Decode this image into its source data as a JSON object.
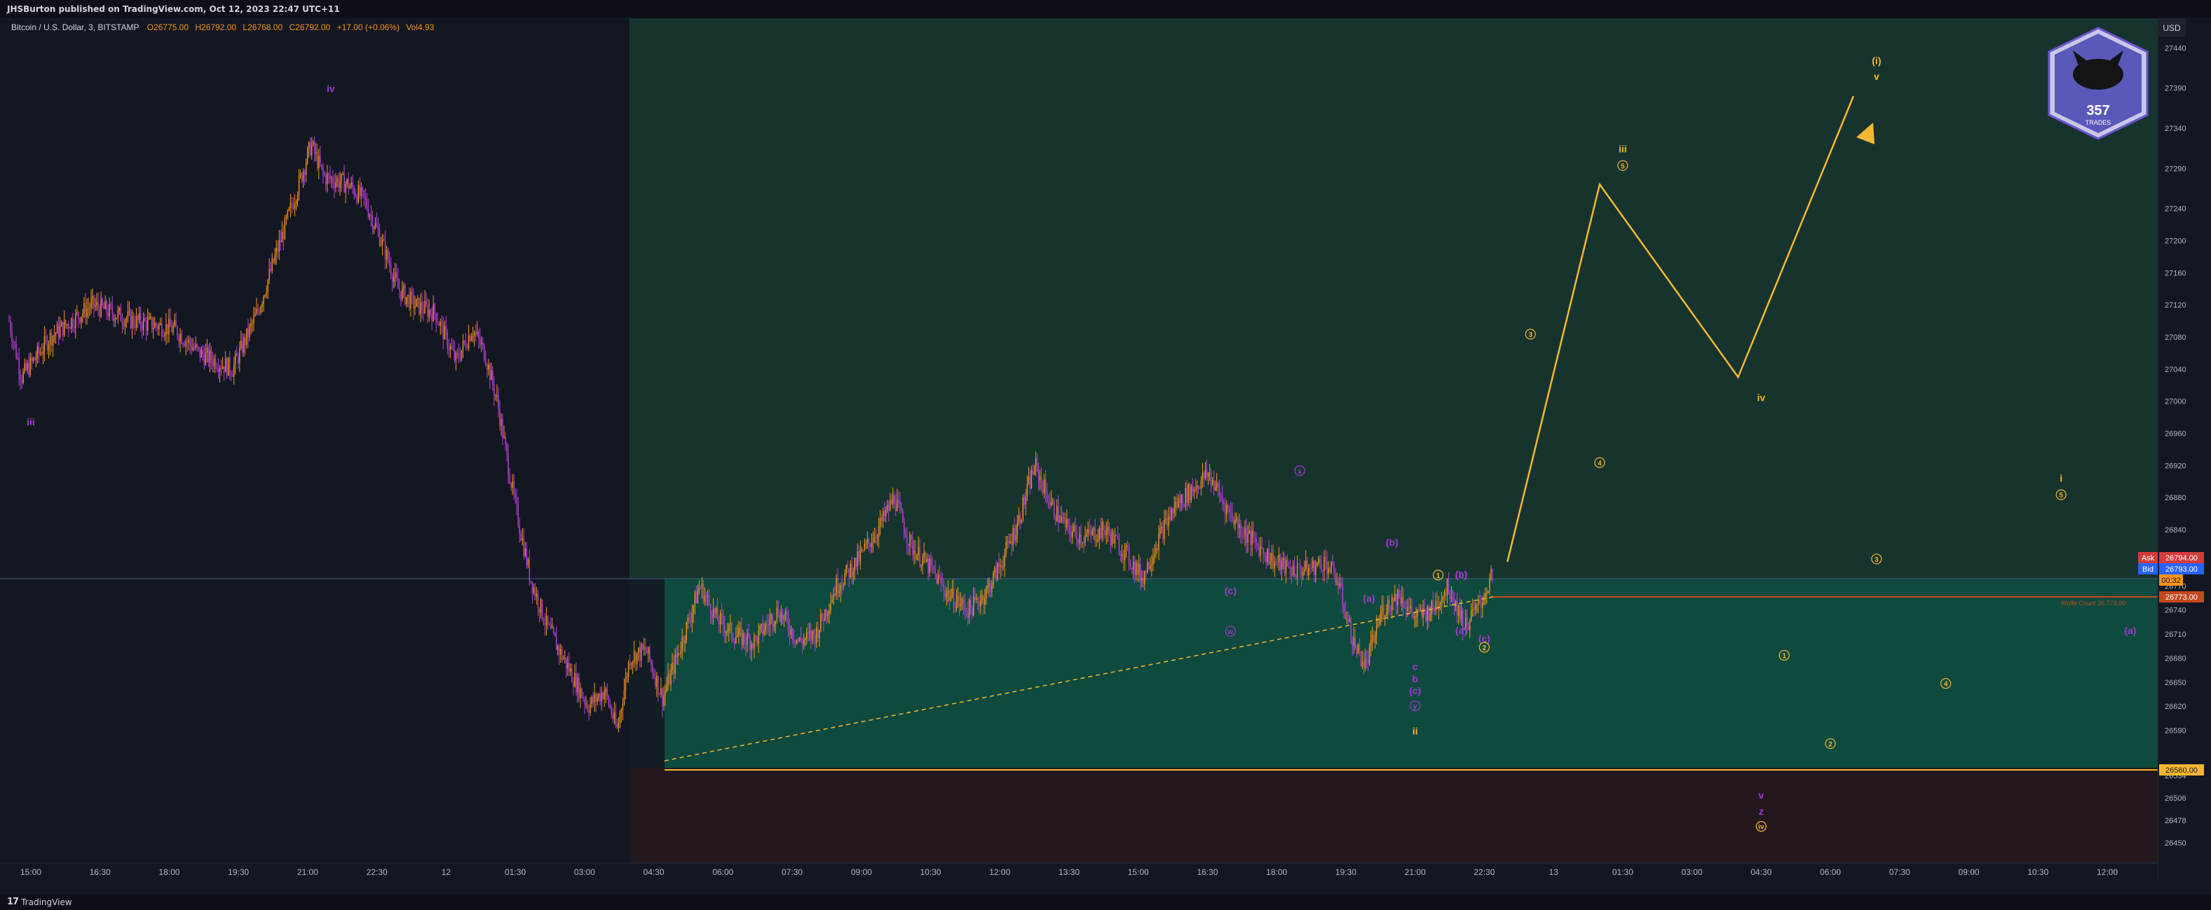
{
  "header": {
    "published_by": "JHSBurton published on TradingView.com, Oct 12, 2023 22:47 UTC+11"
  },
  "footer": {
    "brand": "TradingView",
    "brand_icon": "tradingview-logo-icon"
  },
  "legend": {
    "symbol": "Bitcoin / U.S. Dollar, 3, BITSTAMP",
    "open": "O26775.00",
    "high": "H26792.00",
    "low": "L26768.00",
    "close": "C26792.00",
    "change": "+17.00 (+0.06%)",
    "volume": "Vol4.93"
  },
  "currency_label": "USD",
  "logo": {
    "text": "357",
    "subtext": "TRADES"
  },
  "colors": {
    "background": "#131722",
    "zone_upper": "#16342d",
    "zone_lower": "#0f4a3e",
    "zone_below": "#23181d",
    "candle_up": "#f7931a",
    "candle_down": "#bb3fd6",
    "wave_orange": "#f5b731",
    "wave_purple": "#a139d3",
    "support_line": "#f5b731",
    "resistance_line": "#c2491e"
  },
  "price_tags": {
    "ask_label": "Ask",
    "ask_value": "26794.00",
    "bid_label": "Bid",
    "bid_value": "26793.00",
    "countdown": "00:32",
    "level_red": "26773.00",
    "level_support": "26560.00"
  },
  "chart_data": {
    "type": "candlestick",
    "symbol": "Bitcoin / U.S. Dollar",
    "interval": "3",
    "exchange": "BITSTAMP",
    "y_axis_ticks": [
      27440,
      27390,
      27340,
      27290,
      27240,
      27200,
      27160,
      27120,
      27080,
      27040,
      27000,
      26960,
      26920,
      26880,
      26840,
      26800,
      26770,
      26740,
      26710,
      26680,
      26650,
      26620,
      26590,
      26534,
      26506,
      26478,
      26450
    ],
    "x_axis_ticks": [
      "15:00",
      "16:30",
      "18:00",
      "19:30",
      "21:00",
      "22:30",
      "12",
      "01:30",
      "03:00",
      "04:30",
      "06:00",
      "07:30",
      "09:00",
      "10:30",
      "12:00",
      "13:30",
      "15:00",
      "16:30",
      "18:00",
      "19:30",
      "21:00",
      "22:30",
      "13",
      "01:30",
      "03:00",
      "04:30",
      "06:00",
      "07:30",
      "09:00",
      "10:30",
      "12:00"
    ],
    "price_series": [
      [
        0,
        27100
      ],
      [
        0.3,
        27030
      ],
      [
        1,
        27080
      ],
      [
        2,
        27120
      ],
      [
        3,
        27100
      ],
      [
        4,
        27090
      ],
      [
        4.6,
        27060
      ],
      [
        5.4,
        27040
      ],
      [
        6,
        27110
      ],
      [
        6.5,
        27190
      ],
      [
        7,
        27270
      ],
      [
        7.3,
        27320
      ],
      [
        7.6,
        27280
      ],
      [
        8.2,
        27270
      ],
      [
        8.6,
        27250
      ],
      [
        9,
        27200
      ],
      [
        9.4,
        27140
      ],
      [
        9.8,
        27120
      ],
      [
        10.3,
        27110
      ],
      [
        10.8,
        27050
      ],
      [
        11.2,
        27090
      ],
      [
        11.5,
        27060
      ],
      [
        11.8,
        27000
      ],
      [
        12.2,
        26880
      ],
      [
        12.6,
        26780
      ],
      [
        13,
        26720
      ],
      [
        13.3,
        26690
      ],
      [
        13.6,
        26660
      ],
      [
        14,
        26620
      ],
      [
        14.4,
        26640
      ],
      [
        14.7,
        26590
      ],
      [
        15,
        26680
      ],
      [
        15.4,
        26690
      ],
      [
        15.8,
        26630
      ],
      [
        16.2,
        26690
      ],
      [
        16.7,
        26770
      ],
      [
        17.1,
        26730
      ],
      [
        17.5,
        26710
      ],
      [
        18,
        26700
      ],
      [
        18.6,
        26740
      ],
      [
        19.1,
        26700
      ],
      [
        19.5,
        26710
      ],
      [
        20,
        26770
      ],
      [
        20.5,
        26800
      ],
      [
        21,
        26840
      ],
      [
        21.4,
        26880
      ],
      [
        21.8,
        26820
      ],
      [
        22.3,
        26790
      ],
      [
        22.7,
        26760
      ],
      [
        23.2,
        26740
      ],
      [
        23.6,
        26760
      ],
      [
        24,
        26800
      ],
      [
        24.4,
        26850
      ],
      [
        24.8,
        26920
      ],
      [
        25.2,
        26870
      ],
      [
        25.6,
        26840
      ],
      [
        26,
        26830
      ],
      [
        26.5,
        26840
      ],
      [
        27,
        26810
      ],
      [
        27.4,
        26780
      ],
      [
        27.8,
        26830
      ],
      [
        28.2,
        26870
      ],
      [
        28.6,
        26890
      ],
      [
        29,
        26910
      ],
      [
        29.4,
        26870
      ],
      [
        29.8,
        26840
      ],
      [
        30.2,
        26820
      ],
      [
        30.6,
        26800
      ],
      [
        31,
        26790
      ],
      [
        31.4,
        26790
      ],
      [
        31.8,
        26800
      ],
      [
        32.1,
        26780
      ],
      [
        32.5,
        26700
      ],
      [
        32.8,
        26670
      ],
      [
        33.2,
        26740
      ],
      [
        33.6,
        26760
      ],
      [
        34,
        26730
      ],
      [
        34.4,
        26740
      ],
      [
        34.8,
        26770
      ],
      [
        35.2,
        26720
      ],
      [
        35.6,
        26750
      ],
      [
        35.9,
        26790
      ]
    ],
    "projection": [
      [
        "2023-10-12 23:00",
        26800
      ],
      [
        "2023-10-13 01:00",
        27270
      ],
      [
        "2023-10-13 04:00",
        27030
      ],
      [
        "2023-10-13 06:30",
        27380
      ]
    ],
    "horizontal_levels": [
      {
        "price": 26773,
        "color": "#c2491e",
        "label": "26773.00"
      },
      {
        "price": 26560,
        "color": "#f5b731",
        "label": "26560.00"
      }
    ],
    "wave_labels": [
      {
        "time": "15:00",
        "price": 26970,
        "text": "iii",
        "color": "purple"
      },
      {
        "time": "21:30",
        "price": 27385,
        "text": "iv",
        "color": "purple"
      },
      {
        "time": "04:30",
        "price": 26505,
        "text": "v",
        "color": "purple"
      },
      {
        "time": "04:30",
        "price": 26485,
        "text": "z",
        "color": "purple"
      },
      {
        "time": "04:30",
        "price": 26467,
        "text": "iv",
        "color": "orange",
        "circled": true
      },
      {
        "time": "05:00",
        "price": 26680,
        "text": "1",
        "color": "orange",
        "circled": true
      },
      {
        "time": "06:00",
        "price": 26570,
        "text": "2",
        "color": "orange",
        "circled": true
      },
      {
        "time": "07:00",
        "price": 26800,
        "text": "3",
        "color": "orange",
        "circled": true
      },
      {
        "time": "08:30",
        "price": 26645,
        "text": "4",
        "color": "orange",
        "circled": true
      },
      {
        "time": "11:00",
        "price": 26880,
        "text": "5",
        "color": "orange",
        "circled": true
      },
      {
        "time": "11:00",
        "price": 26900,
        "text": "i",
        "color": "orange"
      },
      {
        "time": "12:30",
        "price": 26710,
        "text": "(a)",
        "color": "purple"
      },
      {
        "time": "14:00",
        "price": 26930,
        "text": "(b)",
        "color": "purple"
      },
      {
        "time": "17:00",
        "price": 26760,
        "text": "(c)",
        "color": "purple"
      },
      {
        "time": "17:00",
        "price": 26710,
        "text": "w",
        "color": "purple",
        "circled": true
      },
      {
        "time": "18:30",
        "price": 26910,
        "text": "x",
        "color": "purple",
        "circled": true
      },
      {
        "time": "20:00",
        "price": 26750,
        "text": "(a)",
        "color": "purple"
      },
      {
        "time": "20:30",
        "price": 26820,
        "text": "(b)",
        "color": "purple"
      },
      {
        "time": "21:00",
        "price": 26665,
        "text": "c",
        "color": "purple"
      },
      {
        "time": "21:00",
        "price": 26650,
        "text": "b",
        "color": "purple"
      },
      {
        "time": "21:00",
        "price": 26635,
        "text": "(c)",
        "color": "purple"
      },
      {
        "time": "21:00",
        "price": 26617,
        "text": "y",
        "color": "purple",
        "circled": true
      },
      {
        "time": "21:00",
        "price": 26585,
        "text": "ii",
        "color": "orange"
      },
      {
        "time": "21:30",
        "price": 26780,
        "text": "1",
        "color": "orange",
        "circled": true
      },
      {
        "time": "22:00",
        "price": 26780,
        "text": "(b)",
        "color": "purple"
      },
      {
        "time": "22:00",
        "price": 26780,
        "text": "(c)",
        "color": "purple"
      },
      {
        "time": "22:00",
        "price": 26710,
        "text": "(a)",
        "color": "purple"
      },
      {
        "time": "22:30",
        "price": 26700,
        "text": "(c)",
        "color": "purple"
      },
      {
        "time": "22:30",
        "price": 26690,
        "text": "2",
        "color": "orange",
        "circled": true
      },
      {
        "time": "23:30",
        "price": 27080,
        "text": "3",
        "color": "orange",
        "circled": true
      },
      {
        "time": "01:00",
        "price": 26920,
        "text": "4",
        "color": "orange",
        "circled": true
      },
      {
        "time": "01:30",
        "price": 27290,
        "text": "5",
        "color": "orange",
        "circled": true
      },
      {
        "time": "01:30",
        "price": 27310,
        "text": "iii",
        "color": "orange"
      },
      {
        "time": "04:30",
        "price": 27000,
        "text": "iv",
        "color": "orange"
      },
      {
        "time": "07:00",
        "price": 27400,
        "text": "v",
        "color": "orange"
      },
      {
        "time": "07:00",
        "price": 27420,
        "text": "(i)",
        "color": "orange"
      }
    ],
    "notes": [
      {
        "text": "Wolfe Count 26,773.00",
        "color": "#c2491e"
      }
    ],
    "ylim": [
      26430,
      27470
    ],
    "grid": false
  }
}
